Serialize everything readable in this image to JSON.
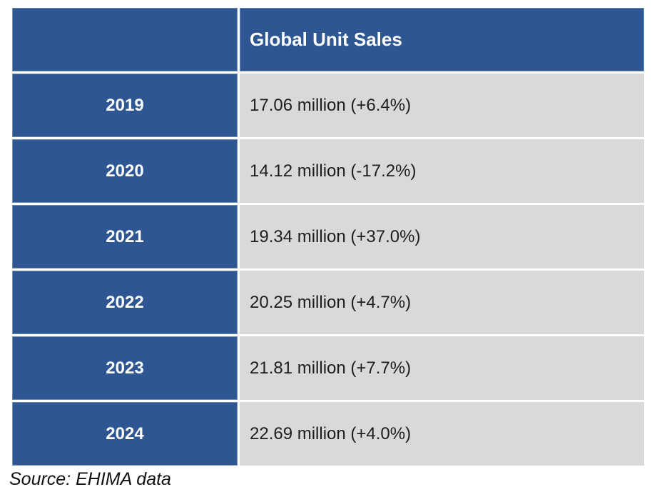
{
  "table": {
    "header": {
      "corner_label": "",
      "sales_column_label": "Global Unit Sales"
    },
    "rows": [
      {
        "year": "2019",
        "value": "17.06 million (+6.4%)"
      },
      {
        "year": "2020",
        "value": "14.12 million (-17.2%)"
      },
      {
        "year": "2021",
        "value": "19.34 million (+37.0%)"
      },
      {
        "year": "2022",
        "value": "20.25 million (+4.7%)"
      },
      {
        "year": "2023",
        "value": "21.81 million (+7.7%)"
      },
      {
        "year": "2024",
        "value": "22.69 million (+4.0%)"
      }
    ]
  },
  "source_note": "Source: EHIMA data",
  "colors": {
    "header_blue": "#2E5693",
    "cell_gray": "#D9D9D9",
    "value_text": "#1E1E1E",
    "header_text": "#FFFFFF"
  },
  "chart_data": {
    "type": "table",
    "title": "Global Unit Sales",
    "categories": [
      "2019",
      "2020",
      "2021",
      "2022",
      "2023",
      "2024"
    ],
    "series": [
      {
        "name": "Global unit sales (millions)",
        "values": [
          17.06,
          14.12,
          19.34,
          20.25,
          21.81,
          22.69
        ]
      },
      {
        "name": "Year-over-year change (%)",
        "values": [
          6.4,
          -17.2,
          37.0,
          4.7,
          7.7,
          4.0
        ]
      }
    ],
    "source": "Source: EHIMA data",
    "layout": {
      "header_column": "years on left, blue",
      "values_column": "gray cells, left-aligned"
    }
  }
}
